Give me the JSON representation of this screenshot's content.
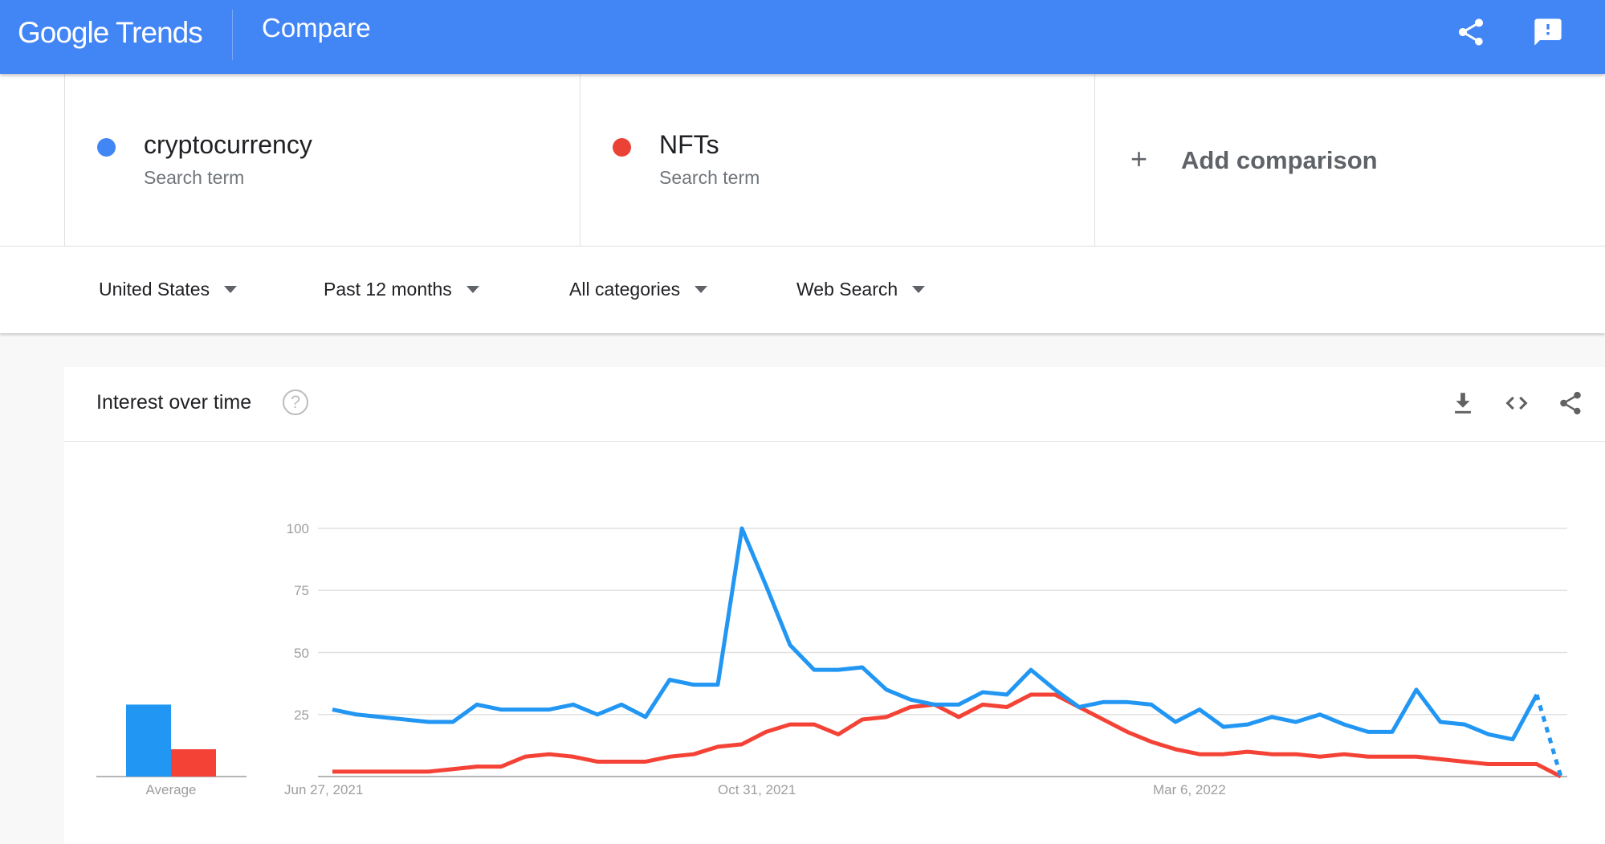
{
  "header": {
    "logo": "Google Trends",
    "logo_google": "Google",
    "logo_trends": "Trends",
    "title": "Compare",
    "icons": [
      "share-icon",
      "feedback-icon"
    ],
    "color": "#4285f4"
  },
  "terms": [
    {
      "name": "cryptocurrency",
      "type": "Search term",
      "color": "#4285f4"
    },
    {
      "name": "NFTs",
      "type": "Search term",
      "color": "#ea4335"
    }
  ],
  "add_comparison": "Add comparison",
  "filters": [
    "United States",
    "Past 12 months",
    "All categories",
    "Web Search"
  ],
  "card": {
    "title": "Interest over time",
    "icons": [
      "download-icon",
      "embed-icon",
      "share-icon"
    ]
  },
  "chart_data": {
    "type": "line",
    "ylim": [
      0,
      100
    ],
    "yticks": [
      "100",
      "75",
      "50",
      "25"
    ],
    "xtick_labels": [
      "Jun 27, 2021",
      "Oct 31, 2021",
      "Mar 6, 2022"
    ],
    "x_start": "2021-06-27",
    "x_interval": "weekly",
    "grid": true,
    "average_label": "Average",
    "series": [
      {
        "color": "#2196f3",
        "average": 29,
        "partial_last": true,
        "values": [
          27,
          25,
          24,
          23,
          22,
          22,
          29,
          27,
          27,
          27,
          29,
          25,
          29,
          24,
          39,
          37,
          37,
          100,
          77,
          53,
          43,
          43,
          44,
          35,
          31,
          29,
          29,
          34,
          33,
          43,
          35,
          28,
          30,
          30,
          29,
          22,
          27,
          20,
          21,
          24,
          22,
          25,
          21,
          18,
          18,
          35,
          22,
          21,
          17,
          15,
          33,
          0
        ]
      },
      {
        "color": "#f44336",
        "average": 11,
        "values": [
          2,
          2,
          2,
          2,
          2,
          3,
          4,
          4,
          8,
          9,
          8,
          6,
          6,
          6,
          8,
          9,
          12,
          13,
          18,
          21,
          21,
          17,
          23,
          24,
          28,
          29,
          24,
          29,
          28,
          33,
          33,
          28,
          23,
          18,
          14,
          11,
          9,
          9,
          10,
          9,
          9,
          8,
          9,
          8,
          8,
          8,
          7,
          6,
          5,
          5,
          5,
          0
        ]
      }
    ]
  }
}
